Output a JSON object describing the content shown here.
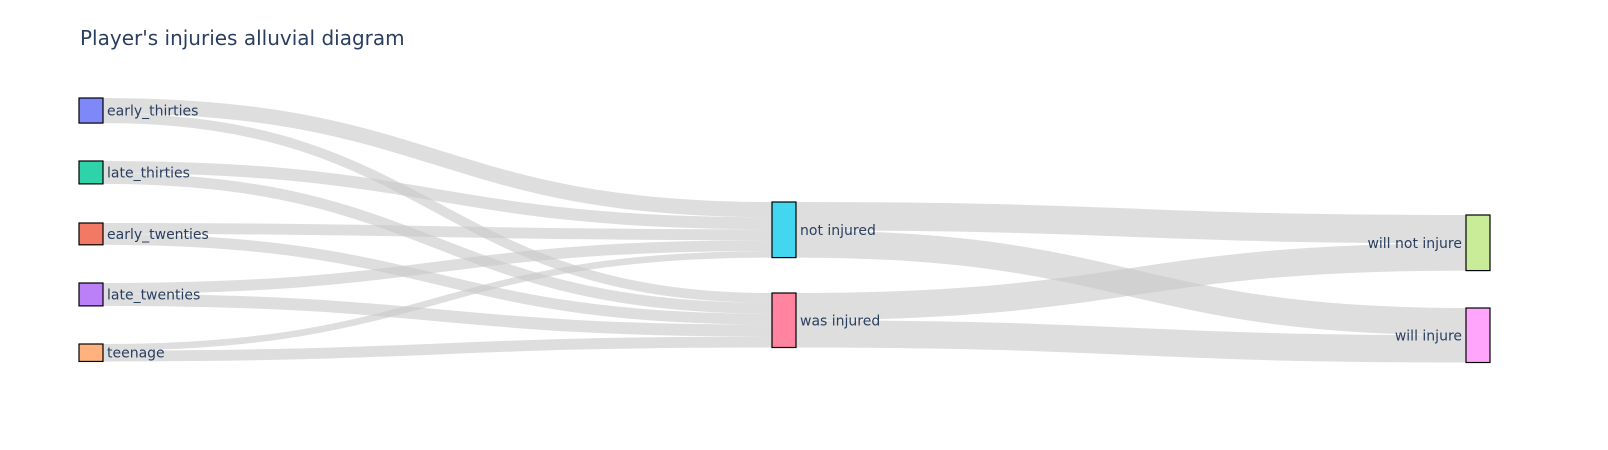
{
  "title": "Player's injuries alluvial diagram",
  "chart_data": {
    "type": "sankey",
    "link_color": "#c8c8c8",
    "node_border_color": "#000000",
    "nodes": [
      {
        "id": "early_thirties",
        "label": "early_thirties",
        "color": "#7f88f8"
      },
      {
        "id": "late_thirties",
        "label": "late_thirties",
        "color": "#2fd3aa"
      },
      {
        "id": "early_twenties",
        "label": "early_twenties",
        "color": "#f27964"
      },
      {
        "id": "late_twenties",
        "label": "late_twenties",
        "color": "#bb80f8"
      },
      {
        "id": "teenage",
        "label": "teenage",
        "color": "#ffb27d"
      },
      {
        "id": "not_injured",
        "label": "not injured",
        "color": "#43d6ef"
      },
      {
        "id": "was_injured",
        "label": "was injured",
        "color": "#ff84a0"
      },
      {
        "id": "will_not_injure",
        "label": "will not injure",
        "color": "#c8ec98"
      },
      {
        "id": "will_injure",
        "label": "will injure",
        "color": "#ffa6fc"
      }
    ],
    "links": [
      {
        "source": "early_thirties",
        "target": "not_injured",
        "value": 14
      },
      {
        "source": "early_thirties",
        "target": "was_injured",
        "value": 9
      },
      {
        "source": "late_thirties",
        "target": "not_injured",
        "value": 11
      },
      {
        "source": "late_thirties",
        "target": "was_injured",
        "value": 10
      },
      {
        "source": "early_twenties",
        "target": "not_injured",
        "value": 10
      },
      {
        "source": "early_twenties",
        "target": "was_injured",
        "value": 10
      },
      {
        "source": "late_twenties",
        "target": "not_injured",
        "value": 10
      },
      {
        "source": "late_twenties",
        "target": "was_injured",
        "value": 11
      },
      {
        "source": "teenage",
        "target": "not_injured",
        "value": 6
      },
      {
        "source": "teenage",
        "target": "was_injured",
        "value": 10
      },
      {
        "source": "not_injured",
        "target": "will_not_injure",
        "value": 26
      },
      {
        "source": "not_injured",
        "target": "will_injure",
        "value": 25
      },
      {
        "source": "was_injured",
        "target": "will_not_injure",
        "value": 25
      },
      {
        "source": "was_injured",
        "target": "will_injure",
        "value": 25
      }
    ]
  }
}
